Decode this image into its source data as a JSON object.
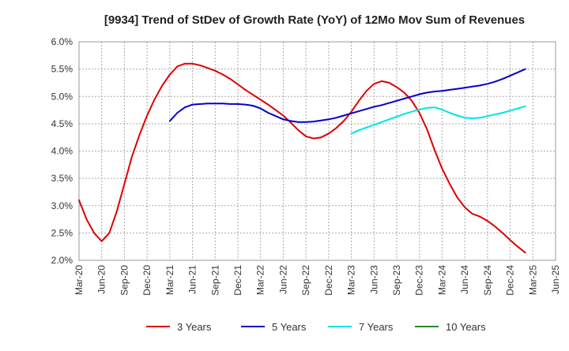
{
  "chart_data": {
    "type": "line",
    "title": "[9934]  Trend of StDev of Growth Rate (YoY) of 12Mo Mov Sum of Revenues",
    "xlabel": "",
    "ylabel": "",
    "ylim": [
      2.0,
      6.0
    ],
    "y_ticks": [
      "2.0%",
      "2.5%",
      "3.0%",
      "3.5%",
      "4.0%",
      "4.5%",
      "5.0%",
      "5.5%",
      "6.0%"
    ],
    "x_ticks": [
      "Mar-20",
      "Jun-20",
      "Sep-20",
      "Dec-20",
      "Mar-21",
      "Jun-21",
      "Sep-21",
      "Dec-21",
      "Mar-22",
      "Jun-22",
      "Sep-22",
      "Dec-22",
      "Mar-23",
      "Jun-23",
      "Sep-23",
      "Dec-23",
      "Mar-24",
      "Jun-24",
      "Sep-24",
      "Dec-24",
      "Mar-25",
      "Jun-25"
    ],
    "grid": true,
    "legend_position": "bottom",
    "series": [
      {
        "name": "3 Years",
        "color": "#dd0000",
        "start_month": 0,
        "values": [
          3.1,
          2.75,
          2.5,
          2.35,
          2.5,
          2.9,
          3.4,
          3.9,
          4.3,
          4.65,
          4.95,
          5.2,
          5.4,
          5.55,
          5.6,
          5.6,
          5.57,
          5.52,
          5.47,
          5.4,
          5.32,
          5.22,
          5.12,
          5.03,
          4.94,
          4.85,
          4.75,
          4.65,
          4.52,
          4.38,
          4.27,
          4.23,
          4.25,
          4.32,
          4.42,
          4.55,
          4.72,
          4.92,
          5.1,
          5.23,
          5.28,
          5.25,
          5.17,
          5.07,
          4.92,
          4.7,
          4.4,
          4.02,
          3.68,
          3.4,
          3.15,
          2.97,
          2.85,
          2.8,
          2.72,
          2.62,
          2.5,
          2.37,
          2.25,
          2.14
        ]
      },
      {
        "name": "5 Years",
        "color": "#0000cc",
        "start_month": 12,
        "values": [
          4.55,
          4.7,
          4.8,
          4.85,
          4.86,
          4.87,
          4.87,
          4.87,
          4.86,
          4.86,
          4.85,
          4.83,
          4.78,
          4.7,
          4.64,
          4.58,
          4.55,
          4.53,
          4.53,
          4.54,
          4.56,
          4.58,
          4.61,
          4.65,
          4.69,
          4.73,
          4.77,
          4.81,
          4.84,
          4.88,
          4.92,
          4.96,
          5.0,
          5.04,
          5.07,
          5.09,
          5.1,
          5.12,
          5.14,
          5.16,
          5.18,
          5.2,
          5.23,
          5.27,
          5.32,
          5.38,
          5.44,
          5.5
        ]
      },
      {
        "name": "7 Years",
        "color": "#00e5e5",
        "start_month": 36,
        "values": [
          4.32,
          4.38,
          4.43,
          4.48,
          4.53,
          4.58,
          4.63,
          4.68,
          4.72,
          4.76,
          4.79,
          4.8,
          4.76,
          4.7,
          4.65,
          4.61,
          4.6,
          4.61,
          4.64,
          4.67,
          4.7,
          4.74,
          4.78,
          4.82
        ]
      },
      {
        "name": "10 Years",
        "color": "#228b22",
        "start_month": 0,
        "values": []
      }
    ]
  }
}
